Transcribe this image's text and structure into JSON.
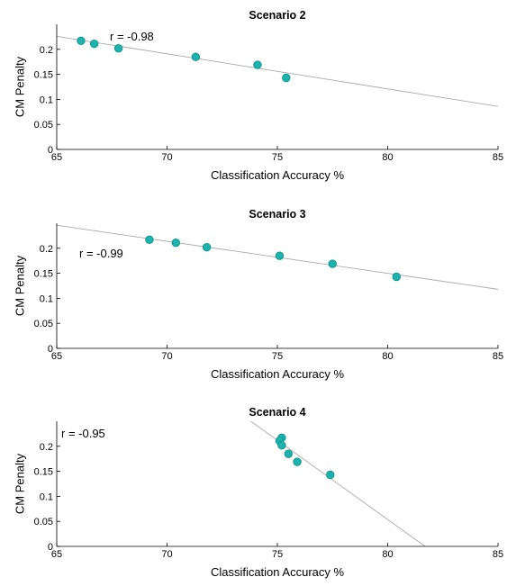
{
  "colors": {
    "marker": "#1bb3ad",
    "marker_edge": "#0e8f8a",
    "fit_line": "#aaaaaa"
  },
  "chart_data": [
    {
      "type": "scatter",
      "title": "Scenario 2",
      "xlabel": "Classification Accuracy %",
      "ylabel": "CM Penalty",
      "xlim": [
        65,
        85
      ],
      "ylim": [
        0,
        0.25
      ],
      "xticks": [
        "65",
        "70",
        "75",
        "80",
        "85"
      ],
      "yticks": [
        "0",
        "0.05",
        "0.1",
        "0.15",
        "0.2"
      ],
      "annotation": "r = -0.98",
      "points": [
        {
          "x": 66.1,
          "y": 0.217
        },
        {
          "x": 66.7,
          "y": 0.211
        },
        {
          "x": 67.8,
          "y": 0.202
        },
        {
          "x": 71.3,
          "y": 0.185
        },
        {
          "x": 74.1,
          "y": 0.169
        },
        {
          "x": 75.4,
          "y": 0.143
        }
      ],
      "fit_line": {
        "x": [
          65,
          85
        ],
        "y": [
          0.226,
          0.086
        ]
      }
    },
    {
      "type": "scatter",
      "title": "Scenario 3",
      "xlabel": "Classification Accuracy %",
      "ylabel": "CM Penalty",
      "xlim": [
        65,
        85
      ],
      "ylim": [
        0,
        0.25
      ],
      "xticks": [
        "65",
        "70",
        "75",
        "80",
        "85"
      ],
      "yticks": [
        "0",
        "0.05",
        "0.1",
        "0.15",
        "0.2"
      ],
      "annotation": "r = -0.99",
      "points": [
        {
          "x": 69.2,
          "y": 0.217
        },
        {
          "x": 70.4,
          "y": 0.211
        },
        {
          "x": 71.8,
          "y": 0.202
        },
        {
          "x": 75.1,
          "y": 0.185
        },
        {
          "x": 77.5,
          "y": 0.169
        },
        {
          "x": 80.4,
          "y": 0.143
        }
      ],
      "fit_line": {
        "x": [
          65,
          85
        ],
        "y": [
          0.246,
          0.118
        ]
      }
    },
    {
      "type": "scatter",
      "title": "Scenario 4",
      "xlabel": "Classification Accuracy %",
      "ylabel": "CM Penalty",
      "xlim": [
        65,
        85
      ],
      "ylim": [
        0,
        0.25
      ],
      "xticks": [
        "65",
        "70",
        "75",
        "80",
        "85"
      ],
      "yticks": [
        "0",
        "0.05",
        "0.1",
        "0.15",
        "0.2"
      ],
      "annotation": "r = -0.95",
      "points": [
        {
          "x": 75.2,
          "y": 0.217
        },
        {
          "x": 75.1,
          "y": 0.211
        },
        {
          "x": 75.2,
          "y": 0.202
        },
        {
          "x": 75.5,
          "y": 0.185
        },
        {
          "x": 75.9,
          "y": 0.169
        },
        {
          "x": 77.4,
          "y": 0.143
        }
      ],
      "fit_line": {
        "x": [
          73.8,
          81.7
        ],
        "y": [
          0.25,
          0.0
        ]
      }
    }
  ]
}
